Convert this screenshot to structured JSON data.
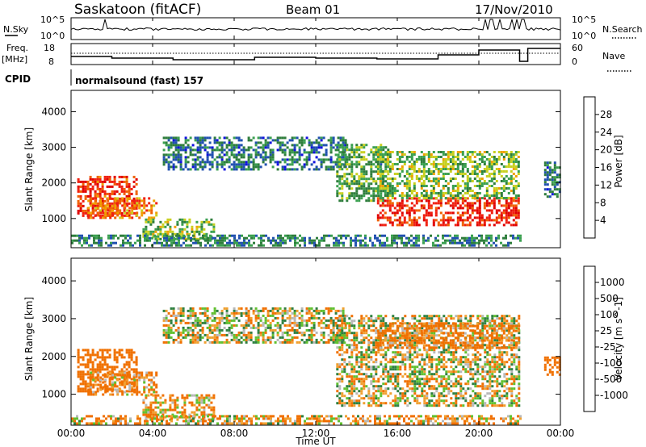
{
  "header": {
    "station": "Saskatoon (fitACF)",
    "beam": "Beam 01",
    "date": "17/Nov/2010"
  },
  "top_panels": {
    "nsky_label": "N.Sky",
    "nsky_tick_high": "10^5",
    "nsky_tick_low": "10^0",
    "nsearch_label": "N.Search",
    "nsearch_tick_high": "10^5",
    "nsearch_tick_low": "10^0",
    "freq_label": "Freq.",
    "freq_unit": "[MHz]",
    "freq_ticks": [
      "18",
      "8"
    ],
    "nave_label": "Nave",
    "nave_ticks": [
      "60",
      "0"
    ],
    "cpid_label": "CPID",
    "cpid_value": "normalsound (fast) 157"
  },
  "colors": {
    "power_scale": [
      "#1010e0",
      "#2050b0",
      "#2e7d3c",
      "#3aa050",
      "#c8d020",
      "#f0a000",
      "#f06000",
      "#f02010",
      "#e00000"
    ],
    "velocity_scale": [
      "#e00000",
      "#f03000",
      "#f07000",
      "#f0a030",
      "#b8b8b8",
      "#b8b8b8",
      "#60c030",
      "#2e8040",
      "#2060b0",
      "#1010c0"
    ]
  },
  "chart_data": [
    {
      "type": "heatmap",
      "title": "Saskatoon (fitACF) Beam 01 17/Nov/2010",
      "quantity": "Power",
      "colorbar_label": "Power [dB]",
      "colorbar_ticks": [
        "4",
        "8",
        "12",
        "16",
        "20",
        "24",
        "28"
      ],
      "colorbar_range": [
        0,
        32
      ],
      "xlabel": "Time UT",
      "ylabel": "Slant Range [km]",
      "x_ticks": [
        "00:00",
        "04:00",
        "08:00",
        "12:00",
        "16:00",
        "20:00",
        "00:00"
      ],
      "y_ticks": [
        "1000",
        "2000",
        "3000",
        "4000"
      ],
      "xlim": [
        0,
        24
      ],
      "ylim": [
        180,
        4600
      ],
      "echo_regions": [
        {
          "t": [
            0.3,
            3.2
          ],
          "range": [
            1100,
            2200
          ],
          "power": 26
        },
        {
          "t": [
            0.8,
            4.2
          ],
          "range": [
            1000,
            1600
          ],
          "power": 22
        },
        {
          "t": [
            3.5,
            7.0
          ],
          "range": [
            400,
            1000
          ],
          "power": 14
        },
        {
          "t": [
            0.0,
            22.0
          ],
          "range": [
            250,
            550
          ],
          "power": 9
        },
        {
          "t": [
            4.5,
            13.5
          ],
          "range": [
            2400,
            3300
          ],
          "power": 8
        },
        {
          "t": [
            13.0,
            15.5
          ],
          "range": [
            1500,
            3100
          ],
          "power": 12
        },
        {
          "t": [
            15.0,
            22.0
          ],
          "range": [
            800,
            1600
          ],
          "power": 27
        },
        {
          "t": [
            15.0,
            22.0
          ],
          "range": [
            1600,
            2900
          ],
          "power": 14
        },
        {
          "t": [
            23.2,
            24.0
          ],
          "range": [
            1600,
            2600
          ],
          "power": 8
        }
      ]
    },
    {
      "type": "heatmap",
      "quantity": "Velocity",
      "colorbar_label": "Velocity [m s^-1]",
      "colorbar_ticks": [
        "1000",
        "500",
        "100",
        "25",
        "-25",
        "-100",
        "-500",
        "-1000"
      ],
      "xlabel": "Time UT",
      "ylabel": "Slant Range [km]",
      "x_ticks": [
        "00:00",
        "04:00",
        "08:00",
        "12:00",
        "16:00",
        "20:00",
        "00:00"
      ],
      "y_ticks": [
        "1000",
        "2000",
        "3000",
        "4000"
      ],
      "xlim": [
        0,
        24
      ],
      "ylim": [
        180,
        4600
      ],
      "echo_regions": [
        {
          "t": [
            0.3,
            3.2
          ],
          "range": [
            1100,
            2200
          ],
          "velocity": -300
        },
        {
          "t": [
            0.8,
            4.2
          ],
          "range": [
            1000,
            1600
          ],
          "velocity": -150
        },
        {
          "t": [
            3.5,
            7.0
          ],
          "range": [
            300,
            1000
          ],
          "velocity": -100
        },
        {
          "t": [
            0.0,
            22.0
          ],
          "range": [
            200,
            450
          ],
          "velocity": -80
        },
        {
          "t": [
            4.5,
            13.5
          ],
          "range": [
            2400,
            3300
          ],
          "velocity": 0
        },
        {
          "t": [
            13.0,
            22.0
          ],
          "range": [
            700,
            3100
          ],
          "velocity": 0
        },
        {
          "t": [
            15.0,
            22.0
          ],
          "range": [
            2200,
            2900
          ],
          "velocity": -200
        },
        {
          "t": [
            23.2,
            24.0
          ],
          "range": [
            1500,
            2000
          ],
          "velocity": -300
        }
      ]
    }
  ]
}
